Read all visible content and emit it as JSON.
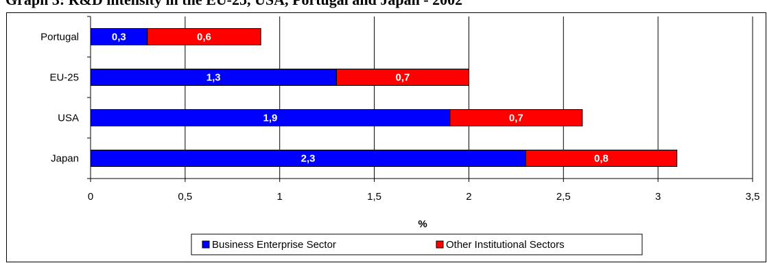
{
  "title": "Graph 3: R&D intensity in the EU-25, USA, Portugal and Japan - 2002",
  "chart_data": {
    "type": "bar",
    "orientation": "horizontal",
    "stacked": true,
    "categories": [
      "Portugal",
      "EU-25",
      "USA",
      "Japan"
    ],
    "series": [
      {
        "name": "Business Enterprise Sector",
        "values": [
          0.3,
          1.3,
          1.9,
          2.3
        ],
        "labels": [
          "0,3",
          "1,3",
          "1,9",
          "2,3"
        ],
        "color": "#0000ff"
      },
      {
        "name": "Other Institutional Sectors",
        "values": [
          0.6,
          0.7,
          0.7,
          0.8
        ],
        "labels": [
          "0,6",
          "0,7",
          "0,7",
          "0,8"
        ],
        "color": "#ff0000"
      }
    ],
    "xlabel": "%",
    "xlim": [
      0,
      3.5
    ],
    "xticks": [
      0,
      0.5,
      1,
      1.5,
      2,
      2.5,
      3,
      3.5
    ],
    "xtick_labels": [
      "0",
      "0,5",
      "1",
      "1,5",
      "2",
      "2,5",
      "3",
      "3,5"
    ],
    "grid": true,
    "legend_position": "bottom"
  }
}
